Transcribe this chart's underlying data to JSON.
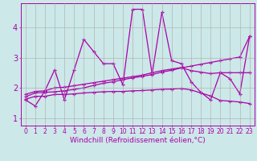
{
  "xlabel": "Windchill (Refroidissement éolien,°C)",
  "xlim": [
    -0.5,
    23.5
  ],
  "ylim": [
    0.75,
    4.8
  ],
  "background_color": "#cce8e8",
  "grid_color": "#aaaaaa",
  "line_color": "#aa00aa",
  "marker": "+",
  "series": [
    {
      "x": [
        0,
        1,
        2,
        3,
        4,
        5,
        6,
        7,
        8,
        9,
        10,
        11,
        12,
        13,
        14,
        15,
        16,
        17,
        18,
        19,
        20,
        21,
        22,
        23
      ],
      "y": [
        1.6,
        1.4,
        1.9,
        2.6,
        1.6,
        2.6,
        3.6,
        3.2,
        2.8,
        2.8,
        2.1,
        4.6,
        4.6,
        2.45,
        4.5,
        2.9,
        2.8,
        2.2,
        1.85,
        1.6,
        2.5,
        2.3,
        1.8,
        3.7
      ]
    },
    {
      "x": [
        0,
        1,
        2,
        3,
        4,
        5,
        6,
        7,
        8,
        9,
        10,
        11,
        12,
        13,
        14,
        15,
        16,
        17,
        18,
        19,
        20,
        21,
        22,
        23
      ],
      "y": [
        1.7,
        1.83,
        1.85,
        1.87,
        1.9,
        1.95,
        2.0,
        2.08,
        2.15,
        2.2,
        2.27,
        2.33,
        2.38,
        2.44,
        2.52,
        2.58,
        2.66,
        2.72,
        2.78,
        2.84,
        2.9,
        2.96,
        3.02,
        3.7
      ]
    },
    {
      "x": [
        0,
        1,
        2,
        3,
        4,
        5,
        6,
        7,
        8,
        9,
        10,
        11,
        12,
        13,
        14,
        15,
        16,
        17,
        18,
        19,
        20,
        21,
        22,
        23
      ],
      "y": [
        1.78,
        1.88,
        1.9,
        2.0,
        2.02,
        2.07,
        2.12,
        2.17,
        2.22,
        2.27,
        2.32,
        2.37,
        2.42,
        2.5,
        2.57,
        2.62,
        2.67,
        2.57,
        2.52,
        2.47,
        2.5,
        2.5,
        2.5,
        2.5
      ]
    },
    {
      "x": [
        0,
        1,
        2,
        3,
        4,
        5,
        6,
        7,
        8,
        9,
        10,
        11,
        12,
        13,
        14,
        15,
        16,
        17,
        18,
        19,
        20,
        21,
        22,
        23
      ],
      "y": [
        1.62,
        1.72,
        1.72,
        1.78,
        1.78,
        1.8,
        1.83,
        1.85,
        1.87,
        1.88,
        1.88,
        1.9,
        1.91,
        1.93,
        1.95,
        1.96,
        1.98,
        1.93,
        1.83,
        1.73,
        1.58,
        1.56,
        1.53,
        1.48
      ]
    }
  ],
  "xtick_labels": [
    "0",
    "1",
    "2",
    "3",
    "4",
    "5",
    "6",
    "7",
    "8",
    "9",
    "10",
    "11",
    "12",
    "13",
    "14",
    "15",
    "16",
    "17",
    "18",
    "19",
    "20",
    "21",
    "22",
    "23"
  ],
  "ytick_labels": [
    "1",
    "2",
    "3",
    "4"
  ],
  "ytick_values": [
    1,
    2,
    3,
    4
  ],
  "fontsize_xlabel": 6.5,
  "fontsize_xtick": 5.5,
  "fontsize_ytick": 7,
  "linewidth": 0.9,
  "markersize": 3.5,
  "markeredgewidth": 0.9
}
